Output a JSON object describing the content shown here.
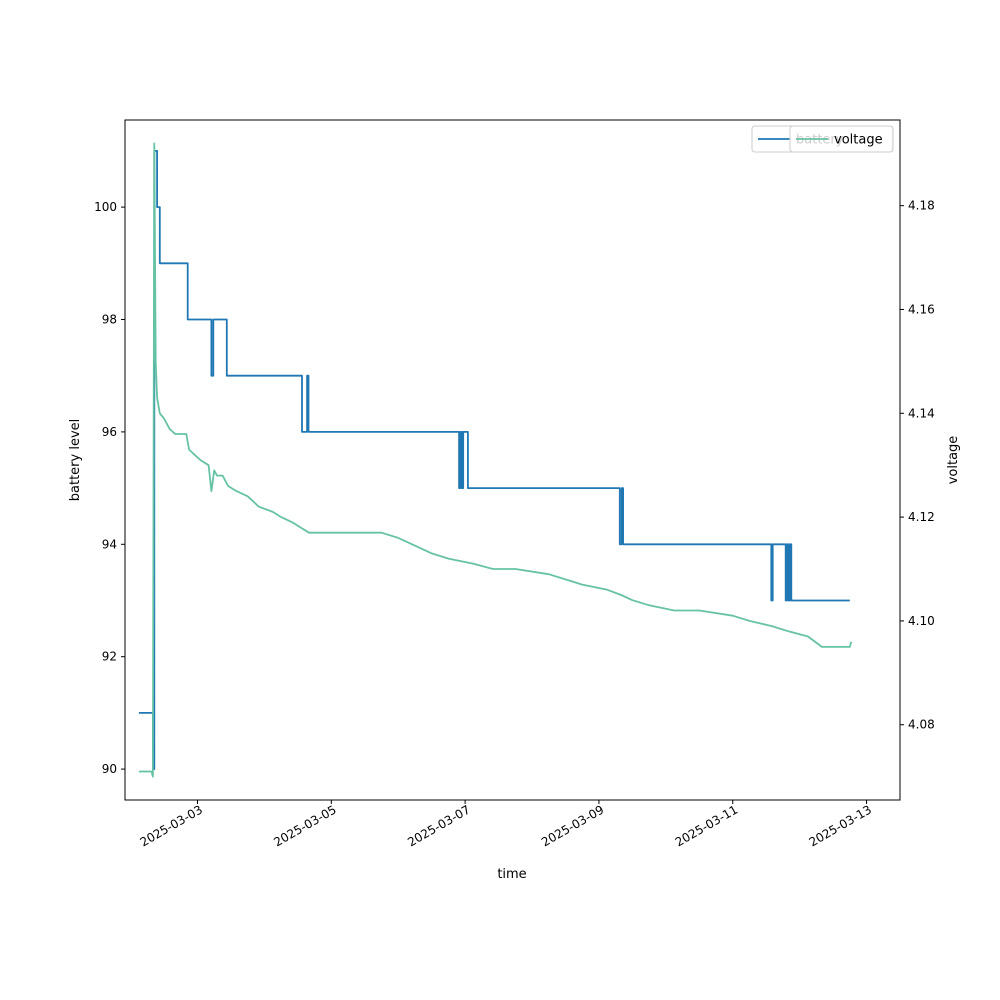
{
  "chart_data": {
    "type": "line",
    "xlabel": "time",
    "ylabel_left": "battery level",
    "ylabel_right": "voltage",
    "x_ticks": [
      "2025-03-03",
      "2025-03-05",
      "2025-03-07",
      "2025-03-09",
      "2025-03-11",
      "2025-03-13"
    ],
    "x_range": [
      "2025-03-01 22:00",
      "2025-03-13 12:00"
    ],
    "y_left_ticks": [
      "90",
      "92",
      "94",
      "96",
      "98",
      "100"
    ],
    "y_left_range": [
      89.45,
      101.55
    ],
    "y_right_ticks": [
      "4.08",
      "4.10",
      "4.12",
      "4.14",
      "4.16",
      "4.18"
    ],
    "y_right_range": [
      4.0655,
      4.1965
    ],
    "grid": false,
    "legends": [
      {
        "placement": "top-right",
        "entries": [
          {
            "name": "battery",
            "color": "#1f77b4"
          }
        ]
      },
      {
        "placement": "top-right",
        "entries": [
          {
            "name": "voltage",
            "color": "#66c2a5"
          }
        ]
      }
    ],
    "series": [
      {
        "name": "battery",
        "axis": "left",
        "color": "#1f77b4",
        "step": true,
        "points": [
          [
            "2025-03-02 03:00",
            91
          ],
          [
            "2025-03-02 08:00",
            90
          ],
          [
            "2025-03-02 08:30",
            101
          ],
          [
            "2025-03-02 09:30",
            100
          ],
          [
            "2025-03-02 10:30",
            99
          ],
          [
            "2025-03-02 20:30",
            98
          ],
          [
            "2025-03-03 05:00",
            97
          ],
          [
            "2025-03-03 05:40",
            98
          ],
          [
            "2025-03-03 10:30",
            97
          ],
          [
            "2025-03-04 13:30",
            96
          ],
          [
            "2025-03-04 15:20",
            97
          ],
          [
            "2025-03-04 15:50",
            96
          ],
          [
            "2025-03-06 21:50",
            95
          ],
          [
            "2025-03-06 22:20",
            96
          ],
          [
            "2025-03-06 22:50",
            95
          ],
          [
            "2025-03-06 23:20",
            96
          ],
          [
            "2025-03-07 01:00",
            95
          ],
          [
            "2025-03-09 07:30",
            94
          ],
          [
            "2025-03-09 08:10",
            95
          ],
          [
            "2025-03-09 08:40",
            94
          ],
          [
            "2025-03-11 13:50",
            93
          ],
          [
            "2025-03-11 14:20",
            94
          ],
          [
            "2025-03-11 19:00",
            93
          ],
          [
            "2025-03-11 19:30",
            94
          ],
          [
            "2025-03-11 20:00",
            93
          ],
          [
            "2025-03-11 20:30",
            94
          ],
          [
            "2025-03-11 21:00",
            93
          ],
          [
            "2025-03-12 18:00",
            93
          ]
        ]
      },
      {
        "name": "voltage",
        "axis": "right",
        "color": "#66c2a5",
        "step": false,
        "points": [
          [
            "2025-03-02 03:00",
            4.071
          ],
          [
            "2025-03-02 07:30",
            4.071
          ],
          [
            "2025-03-02 08:00",
            4.07
          ],
          [
            "2025-03-02 08:30",
            4.192
          ],
          [
            "2025-03-02 09:00",
            4.15
          ],
          [
            "2025-03-02 09:30",
            4.143
          ],
          [
            "2025-03-02 10:30",
            4.14
          ],
          [
            "2025-03-02 12:00",
            4.139
          ],
          [
            "2025-03-02 14:00",
            4.137
          ],
          [
            "2025-03-02 16:00",
            4.136
          ],
          [
            "2025-03-02 20:00",
            4.136
          ],
          [
            "2025-03-02 21:00",
            4.133
          ],
          [
            "2025-03-02 23:00",
            4.132
          ],
          [
            "2025-03-03 01:00",
            4.131
          ],
          [
            "2025-03-03 04:00",
            4.13
          ],
          [
            "2025-03-03 05:00",
            4.125
          ],
          [
            "2025-03-03 06:00",
            4.129
          ],
          [
            "2025-03-03 07:00",
            4.128
          ],
          [
            "2025-03-03 09:00",
            4.128
          ],
          [
            "2025-03-03 11:00",
            4.126
          ],
          [
            "2025-03-03 14:00",
            4.125
          ],
          [
            "2025-03-03 18:00",
            4.124
          ],
          [
            "2025-03-03 22:00",
            4.122
          ],
          [
            "2025-03-04 03:00",
            4.121
          ],
          [
            "2025-03-04 06:00",
            4.12
          ],
          [
            "2025-03-04 10:00",
            4.119
          ],
          [
            "2025-03-04 13:00",
            4.118
          ],
          [
            "2025-03-04 16:00",
            4.117
          ],
          [
            "2025-03-05 00:00",
            4.117
          ],
          [
            "2025-03-05 18:00",
            4.117
          ],
          [
            "2025-03-06 00:00",
            4.116
          ],
          [
            "2025-03-06 04:00",
            4.115
          ],
          [
            "2025-03-06 08:00",
            4.114
          ],
          [
            "2025-03-06 12:00",
            4.113
          ],
          [
            "2025-03-06 18:00",
            4.112
          ],
          [
            "2025-03-07 03:00",
            4.111
          ],
          [
            "2025-03-07 10:00",
            4.11
          ],
          [
            "2025-03-07 18:00",
            4.11
          ],
          [
            "2025-03-08 06:00",
            4.109
          ],
          [
            "2025-03-08 12:00",
            4.108
          ],
          [
            "2025-03-08 18:00",
            4.107
          ],
          [
            "2025-03-09 03:00",
            4.106
          ],
          [
            "2025-03-09 08:00",
            4.105
          ],
          [
            "2025-03-09 12:00",
            4.104
          ],
          [
            "2025-03-09 18:00",
            4.103
          ],
          [
            "2025-03-10 03:00",
            4.102
          ],
          [
            "2025-03-10 12:00",
            4.102
          ],
          [
            "2025-03-11 00:00",
            4.101
          ],
          [
            "2025-03-11 06:00",
            4.1
          ],
          [
            "2025-03-11 14:00",
            4.099
          ],
          [
            "2025-03-11 20:00",
            4.098
          ],
          [
            "2025-03-12 03:00",
            4.097
          ],
          [
            "2025-03-12 08:00",
            4.095
          ],
          [
            "2025-03-12 14:00",
            4.095
          ],
          [
            "2025-03-12 18:00",
            4.095
          ],
          [
            "2025-03-12 18:30",
            4.096
          ]
        ]
      }
    ]
  }
}
